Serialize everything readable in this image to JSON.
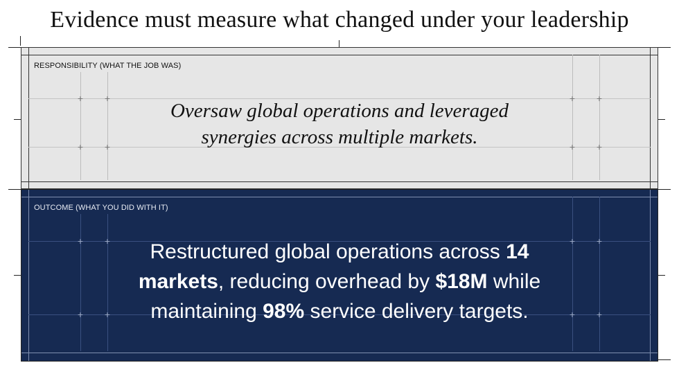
{
  "title": "Evidence must measure what changed under your leadership",
  "responsibility": {
    "label": "RESPONSIBILITY (WHAT THE JOB WAS)",
    "line1": "Oversaw global operations and leveraged",
    "line2": "synergies across multiple markets."
  },
  "outcome": {
    "label": "OUTCOME (WHAT YOU DID WITH IT)",
    "segments": [
      {
        "text": "Restructured global operations across ",
        "bold": false
      },
      {
        "text": "14 markets",
        "bold": true
      },
      {
        "text": ", reducing overhead by ",
        "bold": false
      },
      {
        "text": "$18M",
        "bold": true
      },
      {
        "text": " while maintaining ",
        "bold": false
      },
      {
        "text": "98%",
        "bold": true
      },
      {
        "text": " service delivery targets.",
        "bold": false
      }
    ]
  },
  "colors": {
    "light_panel": "#e6e6e6",
    "dark_panel": "#162a52",
    "guide_light": "#b4b4b4",
    "guide_dark": "#5a6c8e"
  }
}
